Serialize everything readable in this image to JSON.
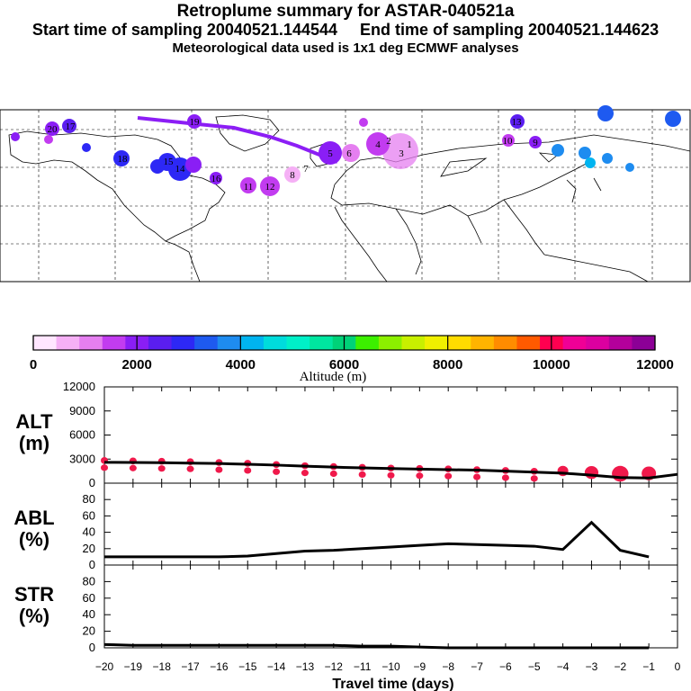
{
  "header": {
    "title": "Retroplume summary for ASTAR-040521a",
    "sampling_line": "Start time of sampling 20040521.144544     End time of sampling 20040521.144623",
    "met_line": "Meteorological data used is 1x1 deg ECMWF analyses"
  },
  "map": {
    "labels": [
      "20",
      "19",
      "18",
      "17",
      "16",
      "15",
      "14",
      "13",
      "12",
      "11",
      "10",
      "9",
      "8",
      "7",
      "6",
      "5",
      "4",
      "3",
      "2",
      "1"
    ],
    "label_values": [
      20,
      19,
      18,
      17,
      16,
      15,
      14,
      13,
      12,
      11,
      10,
      9,
      8,
      7,
      6,
      5,
      4,
      3,
      2,
      1
    ]
  },
  "colorbar": {
    "tick_labels": [
      "0",
      "2000",
      "4000",
      "6000",
      "8000",
      "10000",
      "12000"
    ],
    "label": "Altitude (m)",
    "colors": [
      "#ffe6ff",
      "#f5b0f5",
      "#e57ff0",
      "#c23cf0",
      "#8a1ef5",
      "#5a1ef0",
      "#2d28f5",
      "#1e5af0",
      "#1e8cf0",
      "#00b4f0",
      "#00dcdc",
      "#00f0c8",
      "#00e6a0",
      "#00d278",
      "#3cf000",
      "#8cf000",
      "#c8f000",
      "#f0f000",
      "#ffdc00",
      "#ffb400",
      "#ff8c00",
      "#ff5a00",
      "#ff0050",
      "#f00096",
      "#dc00a0",
      "#b4009b",
      "#8c0096"
    ]
  },
  "chart_data": [
    {
      "type": "line",
      "name": "ALT",
      "ylabel": "ALT\n(m)",
      "ylabel_lines": [
        "ALT",
        "(m)"
      ],
      "ylim": [
        0,
        12000
      ],
      "yticks": [
        0,
        3000,
        6000,
        9000,
        12000
      ],
      "ytick_labels": [
        "0",
        "3000",
        "6000",
        "9000",
        "12000"
      ],
      "x": [
        -20,
        -19,
        -18,
        -17,
        -16,
        -15,
        -14,
        -13,
        -12,
        -11,
        -10,
        -9,
        -8,
        -7,
        -6,
        -5,
        -4,
        -3,
        -2,
        -1,
        0
      ],
      "line": [
        2600,
        2580,
        2550,
        2500,
        2450,
        2350,
        2250,
        2120,
        2000,
        1900,
        1820,
        1750,
        1680,
        1620,
        1500,
        1380,
        1250,
        1000,
        700,
        650,
        1100
      ],
      "dots": [
        {
          "x": -20,
          "y": 2600,
          "size": 1.0
        },
        {
          "x": -19,
          "y": 2550,
          "size": 1.0
        },
        {
          "x": -18,
          "y": 2500,
          "size": 1.0
        },
        {
          "x": -17,
          "y": 2450,
          "size": 1.0
        },
        {
          "x": -16,
          "y": 2350,
          "size": 1.0
        },
        {
          "x": -15,
          "y": 2250,
          "size": 1.0
        },
        {
          "x": -14,
          "y": 2100,
          "size": 1.0
        },
        {
          "x": -13,
          "y": 1950,
          "size": 1.0
        },
        {
          "x": -12,
          "y": 1850,
          "size": 1.0
        },
        {
          "x": -11,
          "y": 1750,
          "size": 1.0
        },
        {
          "x": -10,
          "y": 1650,
          "size": 1.0
        },
        {
          "x": -9,
          "y": 1600,
          "size": 1.0
        },
        {
          "x": -8,
          "y": 1550,
          "size": 1.0
        },
        {
          "x": -7,
          "y": 1450,
          "size": 1.0
        },
        {
          "x": -6,
          "y": 1350,
          "size": 1.0
        },
        {
          "x": -5,
          "y": 1250,
          "size": 1.0
        },
        {
          "x": -4,
          "y": 1300,
          "size": 1.5
        },
        {
          "x": -3,
          "y": 1100,
          "size": 1.9
        },
        {
          "x": -2,
          "y": 950,
          "size": 2.3
        },
        {
          "x": -1,
          "y": 1000,
          "size": 2.0
        }
      ],
      "dot_color": "#f0194b"
    },
    {
      "type": "line",
      "name": "ABL",
      "ylabel": "ABL\n(%)",
      "ylabel_lines": [
        "ABL",
        "(%)"
      ],
      "ylim": [
        0,
        100
      ],
      "yticks": [
        0,
        20,
        40,
        60,
        80
      ],
      "ytick_labels": [
        "0",
        "20",
        "40",
        "60",
        "80"
      ],
      "x": [
        -20,
        -19,
        -18,
        -17,
        -16,
        -15,
        -14,
        -13,
        -12,
        -11,
        -10,
        -9,
        -8,
        -7,
        -6,
        -5,
        -4,
        -3,
        -2,
        -1
      ],
      "values": [
        10,
        10,
        10,
        10,
        10,
        11,
        14,
        17,
        18,
        20,
        22,
        24,
        26,
        25,
        24,
        23,
        19,
        52,
        18,
        10
      ]
    },
    {
      "type": "line",
      "name": "STR",
      "ylabel": "STR\n(%)",
      "ylabel_lines": [
        "STR",
        "(%)"
      ],
      "ylim": [
        0,
        100
      ],
      "yticks": [
        0,
        20,
        40,
        60,
        80
      ],
      "ytick_labels": [
        "0",
        "20",
        "40",
        "60",
        "80"
      ],
      "x": [
        -20,
        -19,
        -18,
        -17,
        -16,
        -15,
        -14,
        -13,
        -12,
        -11,
        -10,
        -9,
        -8,
        -7,
        -6,
        -5,
        -4,
        -3,
        -2,
        -1
      ],
      "values": [
        4,
        3,
        3,
        3,
        3,
        3,
        3,
        3,
        3,
        2,
        2,
        1,
        0,
        0,
        0,
        0,
        0,
        0,
        0,
        0
      ]
    }
  ],
  "xaxis": {
    "title": "Travel time (days)",
    "ticks": [
      -20,
      -19,
      -18,
      -17,
      -16,
      -15,
      -14,
      -13,
      -12,
      -11,
      -10,
      -9,
      -8,
      -7,
      -6,
      -5,
      -4,
      -3,
      -2,
      -1,
      0
    ],
    "tick_labels": [
      "−20",
      "−19",
      "−18",
      "−17",
      "−16",
      "−15",
      "−14",
      "−13",
      "−12",
      "−11",
      "−10",
      "−9",
      "−8",
      "−7",
      "−6",
      "−5",
      "−4",
      "−3",
      "−2",
      "−1",
      "0"
    ]
  }
}
